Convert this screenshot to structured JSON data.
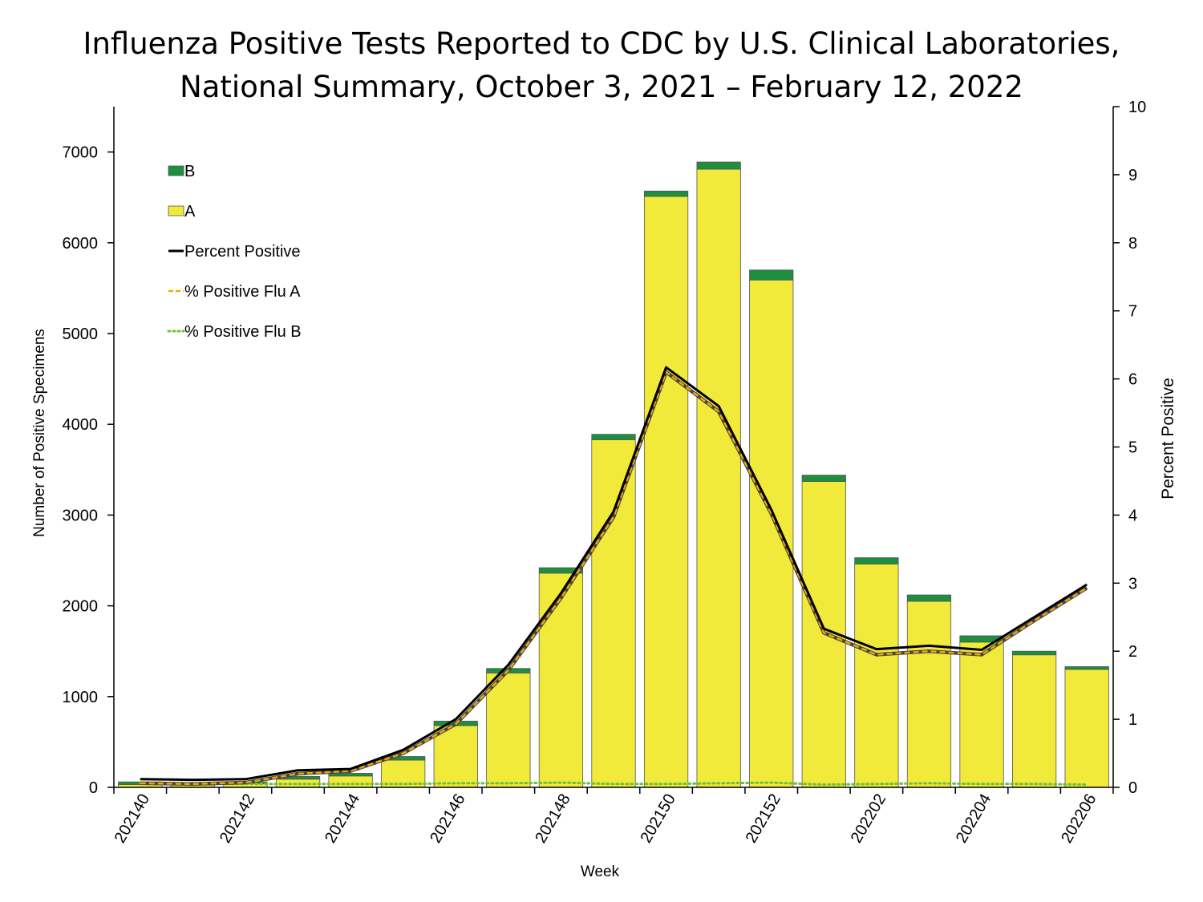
{
  "chart_data": {
    "type": "bar",
    "title_lines": [
      "Influenza Positive Tests Reported to CDC by U.S. Clinical Laboratories,",
      "National Summary, October 3, 2021 – February 12, 2022"
    ],
    "xlabel": "Week",
    "ylabel": "Number of Positive Specimens",
    "y2label": "Percent Positive",
    "ylim": [
      0,
      7500
    ],
    "y_ticks": [
      0,
      1000,
      2000,
      3000,
      4000,
      5000,
      6000,
      7000
    ],
    "y2lim": [
      0,
      10
    ],
    "y2_ticks": [
      0,
      1,
      2,
      3,
      4,
      5,
      6,
      7,
      8,
      9,
      10
    ],
    "categories": [
      "202140",
      "202141",
      "202142",
      "202143",
      "202144",
      "202145",
      "202146",
      "202147",
      "202148",
      "202149",
      "202150",
      "202151",
      "202152",
      "202201",
      "202202",
      "202203",
      "202204",
      "202205",
      "202206"
    ],
    "x_tick_labels": [
      "202140",
      "202142",
      "202144",
      "202146",
      "202148",
      "202150",
      "202152",
      "202202",
      "202204",
      "202206"
    ],
    "stacked": true,
    "series": [
      {
        "name": "A",
        "kind": "bar",
        "color": "#f2ea3a",
        "values": [
          30,
          25,
          40,
          90,
          125,
          300,
          680,
          1260,
          2360,
          3830,
          6510,
          6810,
          5590,
          3370,
          2460,
          2050,
          1600,
          1460,
          1300
        ]
      },
      {
        "name": "B",
        "kind": "bar",
        "color": "#1e8f3e",
        "values": [
          30,
          15,
          20,
          30,
          30,
          40,
          50,
          50,
          60,
          60,
          60,
          80,
          110,
          70,
          70,
          70,
          70,
          40,
          30
        ]
      },
      {
        "name": "Percent Positive",
        "kind": "line",
        "axis": "right",
        "color": "#000000",
        "values": [
          0.12,
          0.11,
          0.12,
          0.25,
          0.27,
          0.55,
          1.0,
          1.8,
          2.85,
          4.05,
          6.17,
          5.6,
          4.08,
          2.33,
          2.03,
          2.08,
          2.02,
          2.5,
          2.98
        ]
      },
      {
        "name": "% Positive Flu A",
        "kind": "line",
        "axis": "right",
        "color": "#f0a800",
        "dash": "dashed",
        "values": [
          0.06,
          0.05,
          0.07,
          0.2,
          0.24,
          0.5,
          0.93,
          1.72,
          2.78,
          3.97,
          6.1,
          5.52,
          4.02,
          2.27,
          1.95,
          2.0,
          1.95,
          2.45,
          2.93
        ]
      },
      {
        "name": "% Positive Flu B",
        "kind": "line",
        "axis": "right",
        "color": "#6fc13c",
        "dash": "dotted",
        "values": [
          0.06,
          0.05,
          0.05,
          0.05,
          0.05,
          0.05,
          0.06,
          0.06,
          0.07,
          0.05,
          0.05,
          0.06,
          0.07,
          0.04,
          0.05,
          0.06,
          0.05,
          0.05,
          0.04
        ]
      }
    ],
    "legend": {
      "placement": "top-left",
      "entries": [
        {
          "label": "B",
          "kind": "box",
          "color": "#1e8f3e"
        },
        {
          "label": "A",
          "kind": "box",
          "color": "#f2ea3a"
        },
        {
          "label": "Percent Positive",
          "kind": "solid",
          "color": "#000000"
        },
        {
          "label": "% Positive Flu A",
          "kind": "dashed",
          "color": "#f0a800"
        },
        {
          "label": "% Positive Flu B",
          "kind": "dotted",
          "color": "#6fc13c"
        }
      ]
    }
  }
}
